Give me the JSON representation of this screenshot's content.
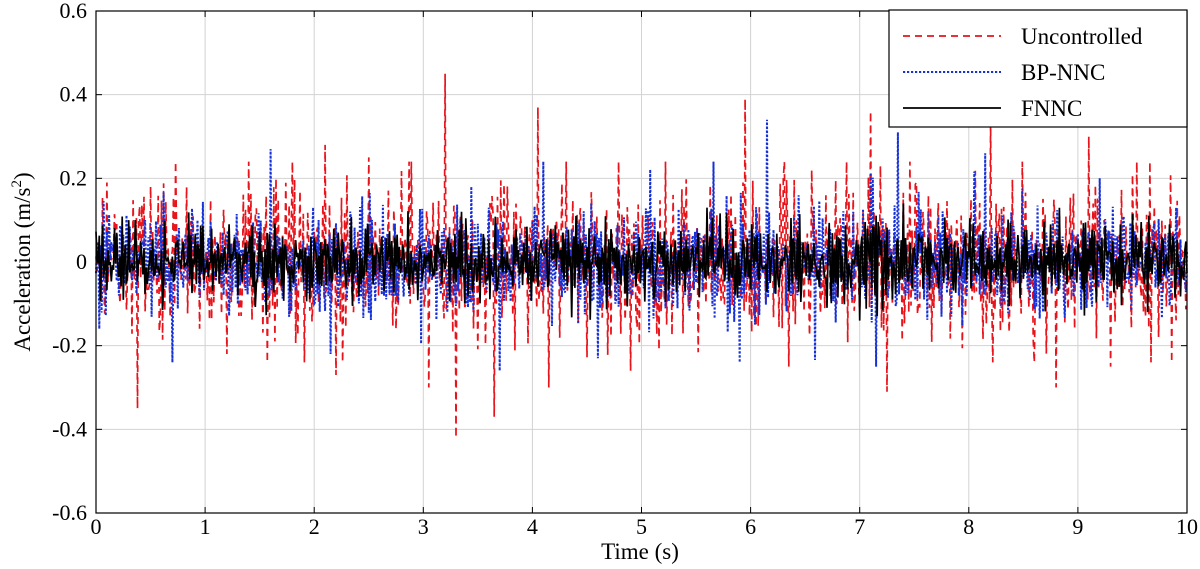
{
  "chart_data": {
    "type": "line",
    "title": "",
    "xlabel": "Time (s)",
    "ylabel_main": "Acceleration (m/s",
    "ylabel_sup": "2",
    "ylabel_close": ")",
    "xlim": [
      0,
      10
    ],
    "ylim": [
      -0.6,
      0.6
    ],
    "xticks": [
      0,
      1,
      2,
      3,
      4,
      5,
      6,
      7,
      8,
      9,
      10
    ],
    "yticks": [
      -0.6,
      -0.4,
      -0.2,
      0,
      0.2,
      0.4,
      0.6
    ],
    "xtick_labels": [
      "0",
      "1",
      "2",
      "3",
      "4",
      "5",
      "6",
      "7",
      "8",
      "9",
      "10"
    ],
    "ytick_labels": [
      "-0.6",
      "-0.4",
      "-0.2",
      "0",
      "0.2",
      "0.4",
      "0.6"
    ],
    "grid": true,
    "legend_position": "top-right",
    "series": [
      {
        "name": "Uncontrolled",
        "color": "#e8141b",
        "style": "dashed",
        "peaks": [
          {
            "x": 0.1,
            "y": 0.19
          },
          {
            "x": 0.38,
            "y": -0.35
          },
          {
            "x": 0.5,
            "y": 0.18
          },
          {
            "x": 1.2,
            "y": -0.22
          },
          {
            "x": 1.4,
            "y": 0.24
          },
          {
            "x": 2.1,
            "y": 0.28
          },
          {
            "x": 2.2,
            "y": -0.27
          },
          {
            "x": 2.5,
            "y": 0.25
          },
          {
            "x": 3.05,
            "y": -0.3
          },
          {
            "x": 3.2,
            "y": 0.45
          },
          {
            "x": 3.3,
            "y": -0.42
          },
          {
            "x": 3.65,
            "y": -0.37
          },
          {
            "x": 4.05,
            "y": 0.37
          },
          {
            "x": 4.15,
            "y": -0.3
          },
          {
            "x": 4.9,
            "y": -0.26
          },
          {
            "x": 5.95,
            "y": 0.39
          },
          {
            "x": 6.35,
            "y": -0.25
          },
          {
            "x": 7.1,
            "y": 0.36
          },
          {
            "x": 7.25,
            "y": -0.31
          },
          {
            "x": 8.2,
            "y": 0.33
          },
          {
            "x": 8.8,
            "y": -0.3
          },
          {
            "x": 9.1,
            "y": 0.3
          },
          {
            "x": 9.3,
            "y": -0.25
          }
        ]
      },
      {
        "name": "BP-NNC",
        "color": "#1530d6",
        "style": "dotted",
        "peaks": [
          {
            "x": 0.03,
            "y": -0.16
          },
          {
            "x": 1.6,
            "y": 0.27
          },
          {
            "x": 2.15,
            "y": -0.22
          },
          {
            "x": 3.7,
            "y": -0.26
          },
          {
            "x": 4.1,
            "y": 0.24
          },
          {
            "x": 4.6,
            "y": -0.23
          },
          {
            "x": 6.15,
            "y": 0.34
          },
          {
            "x": 7.15,
            "y": -0.25
          },
          {
            "x": 7.35,
            "y": 0.31
          },
          {
            "x": 8.15,
            "y": 0.26
          },
          {
            "x": 9.2,
            "y": 0.2
          }
        ]
      },
      {
        "name": "FNNC",
        "color": "#000000",
        "style": "solid",
        "peaks": [
          {
            "x": 0.3,
            "y": 0.1
          },
          {
            "x": 1.3,
            "y": -0.08
          },
          {
            "x": 3.35,
            "y": 0.12
          },
          {
            "x": 5.6,
            "y": 0.13
          },
          {
            "x": 7.0,
            "y": -0.14
          },
          {
            "x": 7.4,
            "y": 0.14
          }
        ]
      }
    ]
  }
}
